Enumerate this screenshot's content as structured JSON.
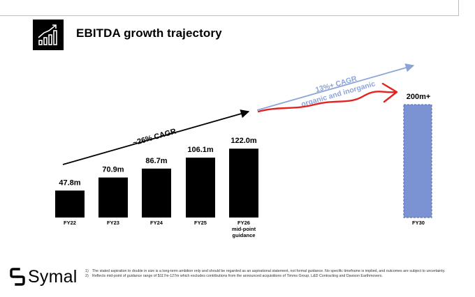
{
  "slide": {
    "title": "EBITDA growth trajectory",
    "title_icon": "bar-chart-growth-icon"
  },
  "chart_data": {
    "type": "bar",
    "categories": [
      "FY22",
      "FY23",
      "FY24",
      "FY25",
      "FY26",
      "FY30"
    ],
    "category_sublabels": [
      "",
      "",
      "",
      "",
      "mid-point\nguidance",
      ""
    ],
    "values": [
      47.8,
      70.9,
      86.7,
      106.1,
      122.0,
      200
    ],
    "value_labels": [
      "47.8m",
      "70.9m",
      "86.7m",
      "106.1m",
      "122.0m",
      "200m+"
    ],
    "ylim": [
      0,
      210
    ],
    "colors": {
      "actual": "#000000",
      "target": "#7b93d3",
      "target_border": "#5a73b8",
      "cagr_arrow": "#000000",
      "target_arrow": "#8ca3d9",
      "annotation_red": "#e32222"
    },
    "annotations": [
      {
        "text": "~26% CAGR",
        "from": "FY22",
        "to": "FY26"
      },
      {
        "text": "13%+ CAGR",
        "line2": "organic and inorganic",
        "from": "FY26",
        "to": "FY30"
      }
    ],
    "xlabel": "",
    "ylabel": "",
    "grid": false
  },
  "footer": {
    "logo_text": "Symal",
    "logo_icon": "symal-mark-icon",
    "notes": [
      {
        "num": "1)",
        "text": "The stated aspiration to double in size is a long-term ambition only and should be regarded as an aspirational statement, not formal guidance. No specific timeframe is implied, and outcomes are subject to uncertainty."
      },
      {
        "num": "2)",
        "text": "Reflects mid-point of guidance range of $117m-127m which excludes contributions from the announced acquisitions of Timms Group, L&D Contracting and Davison Earthmovers."
      }
    ]
  }
}
